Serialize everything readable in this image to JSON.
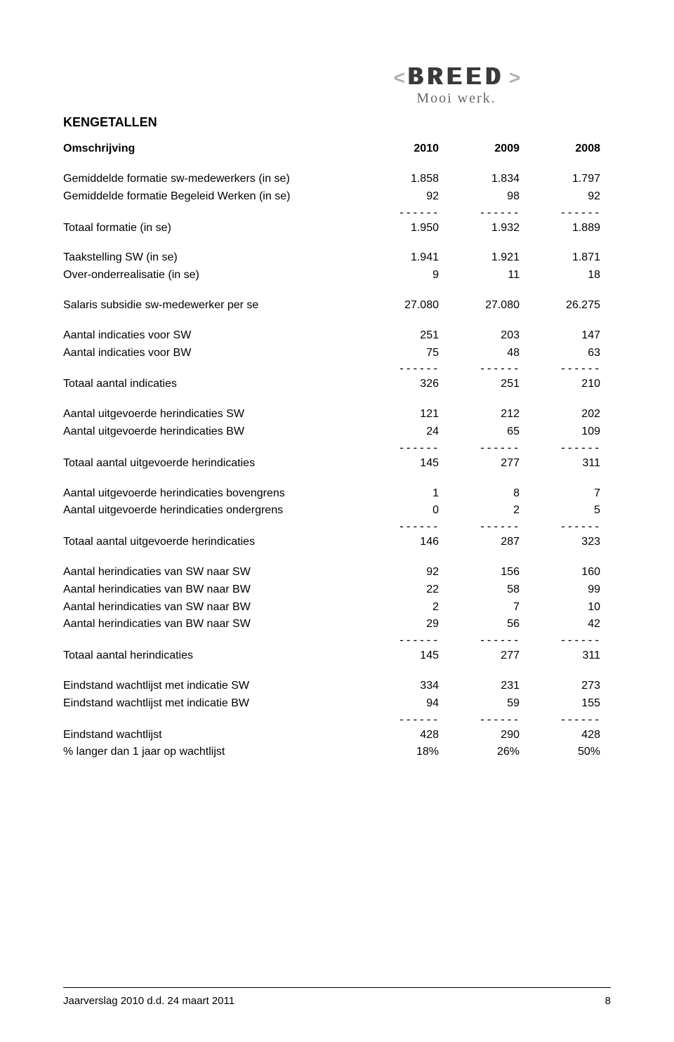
{
  "logo": {
    "left_chevron": "<",
    "brand": "BREED",
    "right_chevron": ">",
    "slogan": "Mooi werk."
  },
  "section_title": "KENGETALLEN",
  "headers": {
    "label": "Omschrijving",
    "c2010": "2010",
    "c2009": "2009",
    "c2008": "2008"
  },
  "dash": "------",
  "rows": {
    "r1": {
      "label": "Gemiddelde formatie sw-medewerkers (in se)",
      "c2010": "1.858",
      "c2009": "1.834",
      "c2008": "1.797"
    },
    "r2": {
      "label": "Gemiddelde formatie Begeleid Werken (in se)",
      "c2010": "92",
      "c2009": "98",
      "c2008": "92"
    },
    "r3": {
      "label": "Totaal formatie (in se)",
      "c2010": "1.950",
      "c2009": "1.932",
      "c2008": "1.889"
    },
    "r4": {
      "label": "Taakstelling SW (in se)",
      "c2010": "1.941",
      "c2009": "1.921",
      "c2008": "1.871"
    },
    "r5": {
      "label": "Over-onderrealisatie (in se)",
      "c2010": "9",
      "c2009": "11",
      "c2008": "18"
    },
    "r6": {
      "label": "Salaris subsidie sw-medewerker per se",
      "c2010": "27.080",
      "c2009": "27.080",
      "c2008": "26.275"
    },
    "r7": {
      "label": "Aantal indicaties voor SW",
      "c2010": "251",
      "c2009": "203",
      "c2008": "147"
    },
    "r8": {
      "label": "Aantal indicaties voor BW",
      "c2010": "75",
      "c2009": "48",
      "c2008": "63"
    },
    "r9": {
      "label": "Totaal aantal indicaties",
      "c2010": "326",
      "c2009": "251",
      "c2008": "210"
    },
    "r10": {
      "label": "Aantal uitgevoerde herindicaties SW",
      "c2010": "121",
      "c2009": "212",
      "c2008": "202"
    },
    "r11": {
      "label": "Aantal uitgevoerde herindicaties BW",
      "c2010": "24",
      "c2009": "65",
      "c2008": "109"
    },
    "r12": {
      "label": "Totaal aantal uitgevoerde herindicaties",
      "c2010": "145",
      "c2009": "277",
      "c2008": "311"
    },
    "r13": {
      "label": "Aantal uitgevoerde herindicaties bovengrens",
      "c2010": "1",
      "c2009": "8",
      "c2008": "7"
    },
    "r14": {
      "label": "Aantal uitgevoerde herindicaties ondergrens",
      "c2010": "0",
      "c2009": "2",
      "c2008": "5"
    },
    "r15": {
      "label": "Totaal aantal uitgevoerde herindicaties",
      "c2010": "146",
      "c2009": "287",
      "c2008": "323"
    },
    "r16": {
      "label": "Aantal herindicaties van SW naar SW",
      "c2010": "92",
      "c2009": "156",
      "c2008": "160"
    },
    "r17": {
      "label": "Aantal herindicaties van BW naar BW",
      "c2010": "22",
      "c2009": "58",
      "c2008": "99"
    },
    "r18": {
      "label": "Aantal herindicaties van SW naar BW",
      "c2010": "2",
      "c2009": "7",
      "c2008": "10"
    },
    "r19": {
      "label": "Aantal herindicaties van BW naar SW",
      "c2010": "29",
      "c2009": "56",
      "c2008": "42"
    },
    "r20": {
      "label": "Totaal aantal herindicaties",
      "c2010": "145",
      "c2009": "277",
      "c2008": "311"
    },
    "r21": {
      "label": "Eindstand wachtlijst met indicatie SW",
      "c2010": "334",
      "c2009": "231",
      "c2008": "273"
    },
    "r22": {
      "label": "Eindstand wachtlijst met indicatie BW",
      "c2010": "94",
      "c2009": "59",
      "c2008": "155"
    },
    "r23": {
      "label": "Eindstand wachtlijst",
      "c2010": "428",
      "c2009": "290",
      "c2008": "428"
    },
    "r24": {
      "label": "% langer dan 1 jaar op wachtlijst",
      "c2010": "18%",
      "c2009": "26%",
      "c2008": "50%"
    }
  },
  "footer": {
    "left": "Jaarverslag 2010 d.d. 24 maart 2011",
    "page": "8"
  }
}
